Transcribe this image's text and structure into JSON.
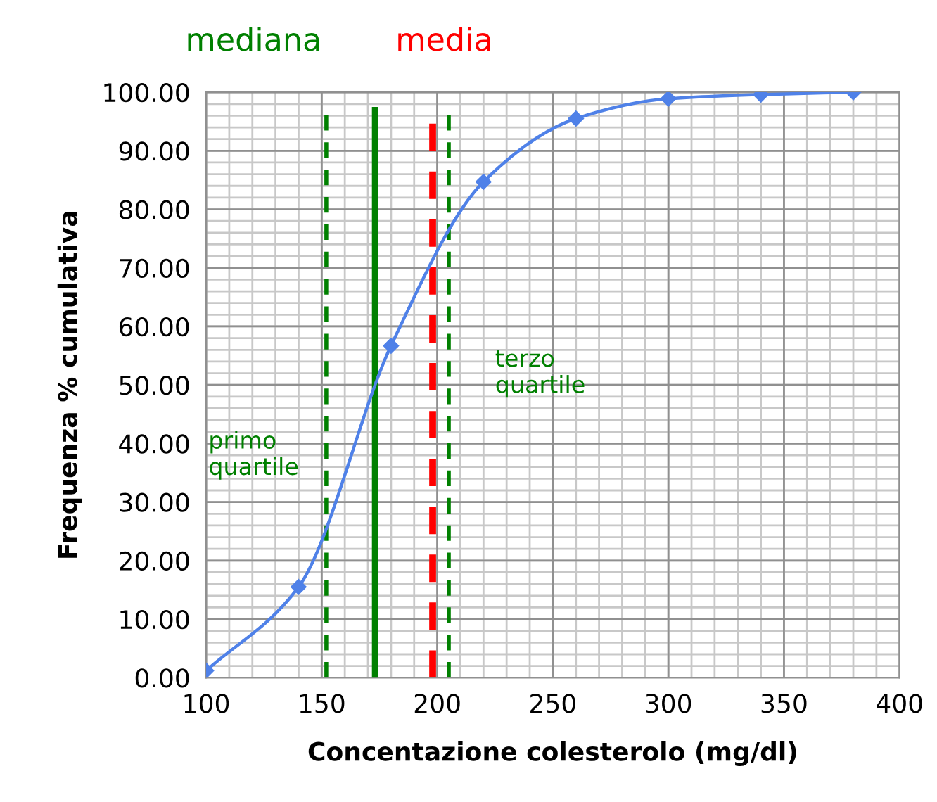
{
  "chart_data": {
    "type": "line",
    "xlabel": "Concentazione colesterolo (mg/dl)",
    "ylabel": "Frequenza % cumulativa",
    "x": [
      100,
      140,
      180,
      220,
      260,
      300,
      340,
      380
    ],
    "series": [
      {
        "color": "#4f81e8",
        "values": [
          1.2,
          15.5,
          56.7,
          84.7,
          95.5,
          98.9,
          99.6,
          100
        ]
      }
    ],
    "marker": "diamond",
    "line_style": "solid",
    "grid": true,
    "xlim": [
      100,
      400
    ],
    "xticks": [
      100,
      150,
      200,
      250,
      300,
      350,
      400
    ],
    "ylim": [
      0,
      100
    ],
    "yticks": [
      {
        "value": 0,
        "label": "0.00"
      },
      {
        "value": 10,
        "label": "10.00"
      },
      {
        "value": 20,
        "label": "20.00"
      },
      {
        "value": 30,
        "label": "30.00"
      },
      {
        "value": 40,
        "label": "40.00"
      },
      {
        "value": 50,
        "label": "50.00"
      },
      {
        "value": 60,
        "label": "60.00"
      },
      {
        "value": 70,
        "label": "70.00"
      },
      {
        "value": 80,
        "label": "80.00"
      },
      {
        "value": 90,
        "label": "90.00"
      },
      {
        "value": 100,
        "label": "100.00"
      }
    ],
    "ref_lines": [
      {
        "axis": "x",
        "value": 152,
        "label": "primo\nquartile",
        "color": "#008000",
        "line_style": "dashed"
      },
      {
        "axis": "x",
        "value": 173,
        "label": "mediana",
        "color": "#008000",
        "line_style": "solid"
      },
      {
        "axis": "x",
        "value": 198,
        "label": "media",
        "color": "#ff0000",
        "line_style": "dashed"
      },
      {
        "axis": "x",
        "value": 205,
        "label": "terzo\nquartile",
        "color": "#008000",
        "line_style": "dashed"
      }
    ]
  }
}
